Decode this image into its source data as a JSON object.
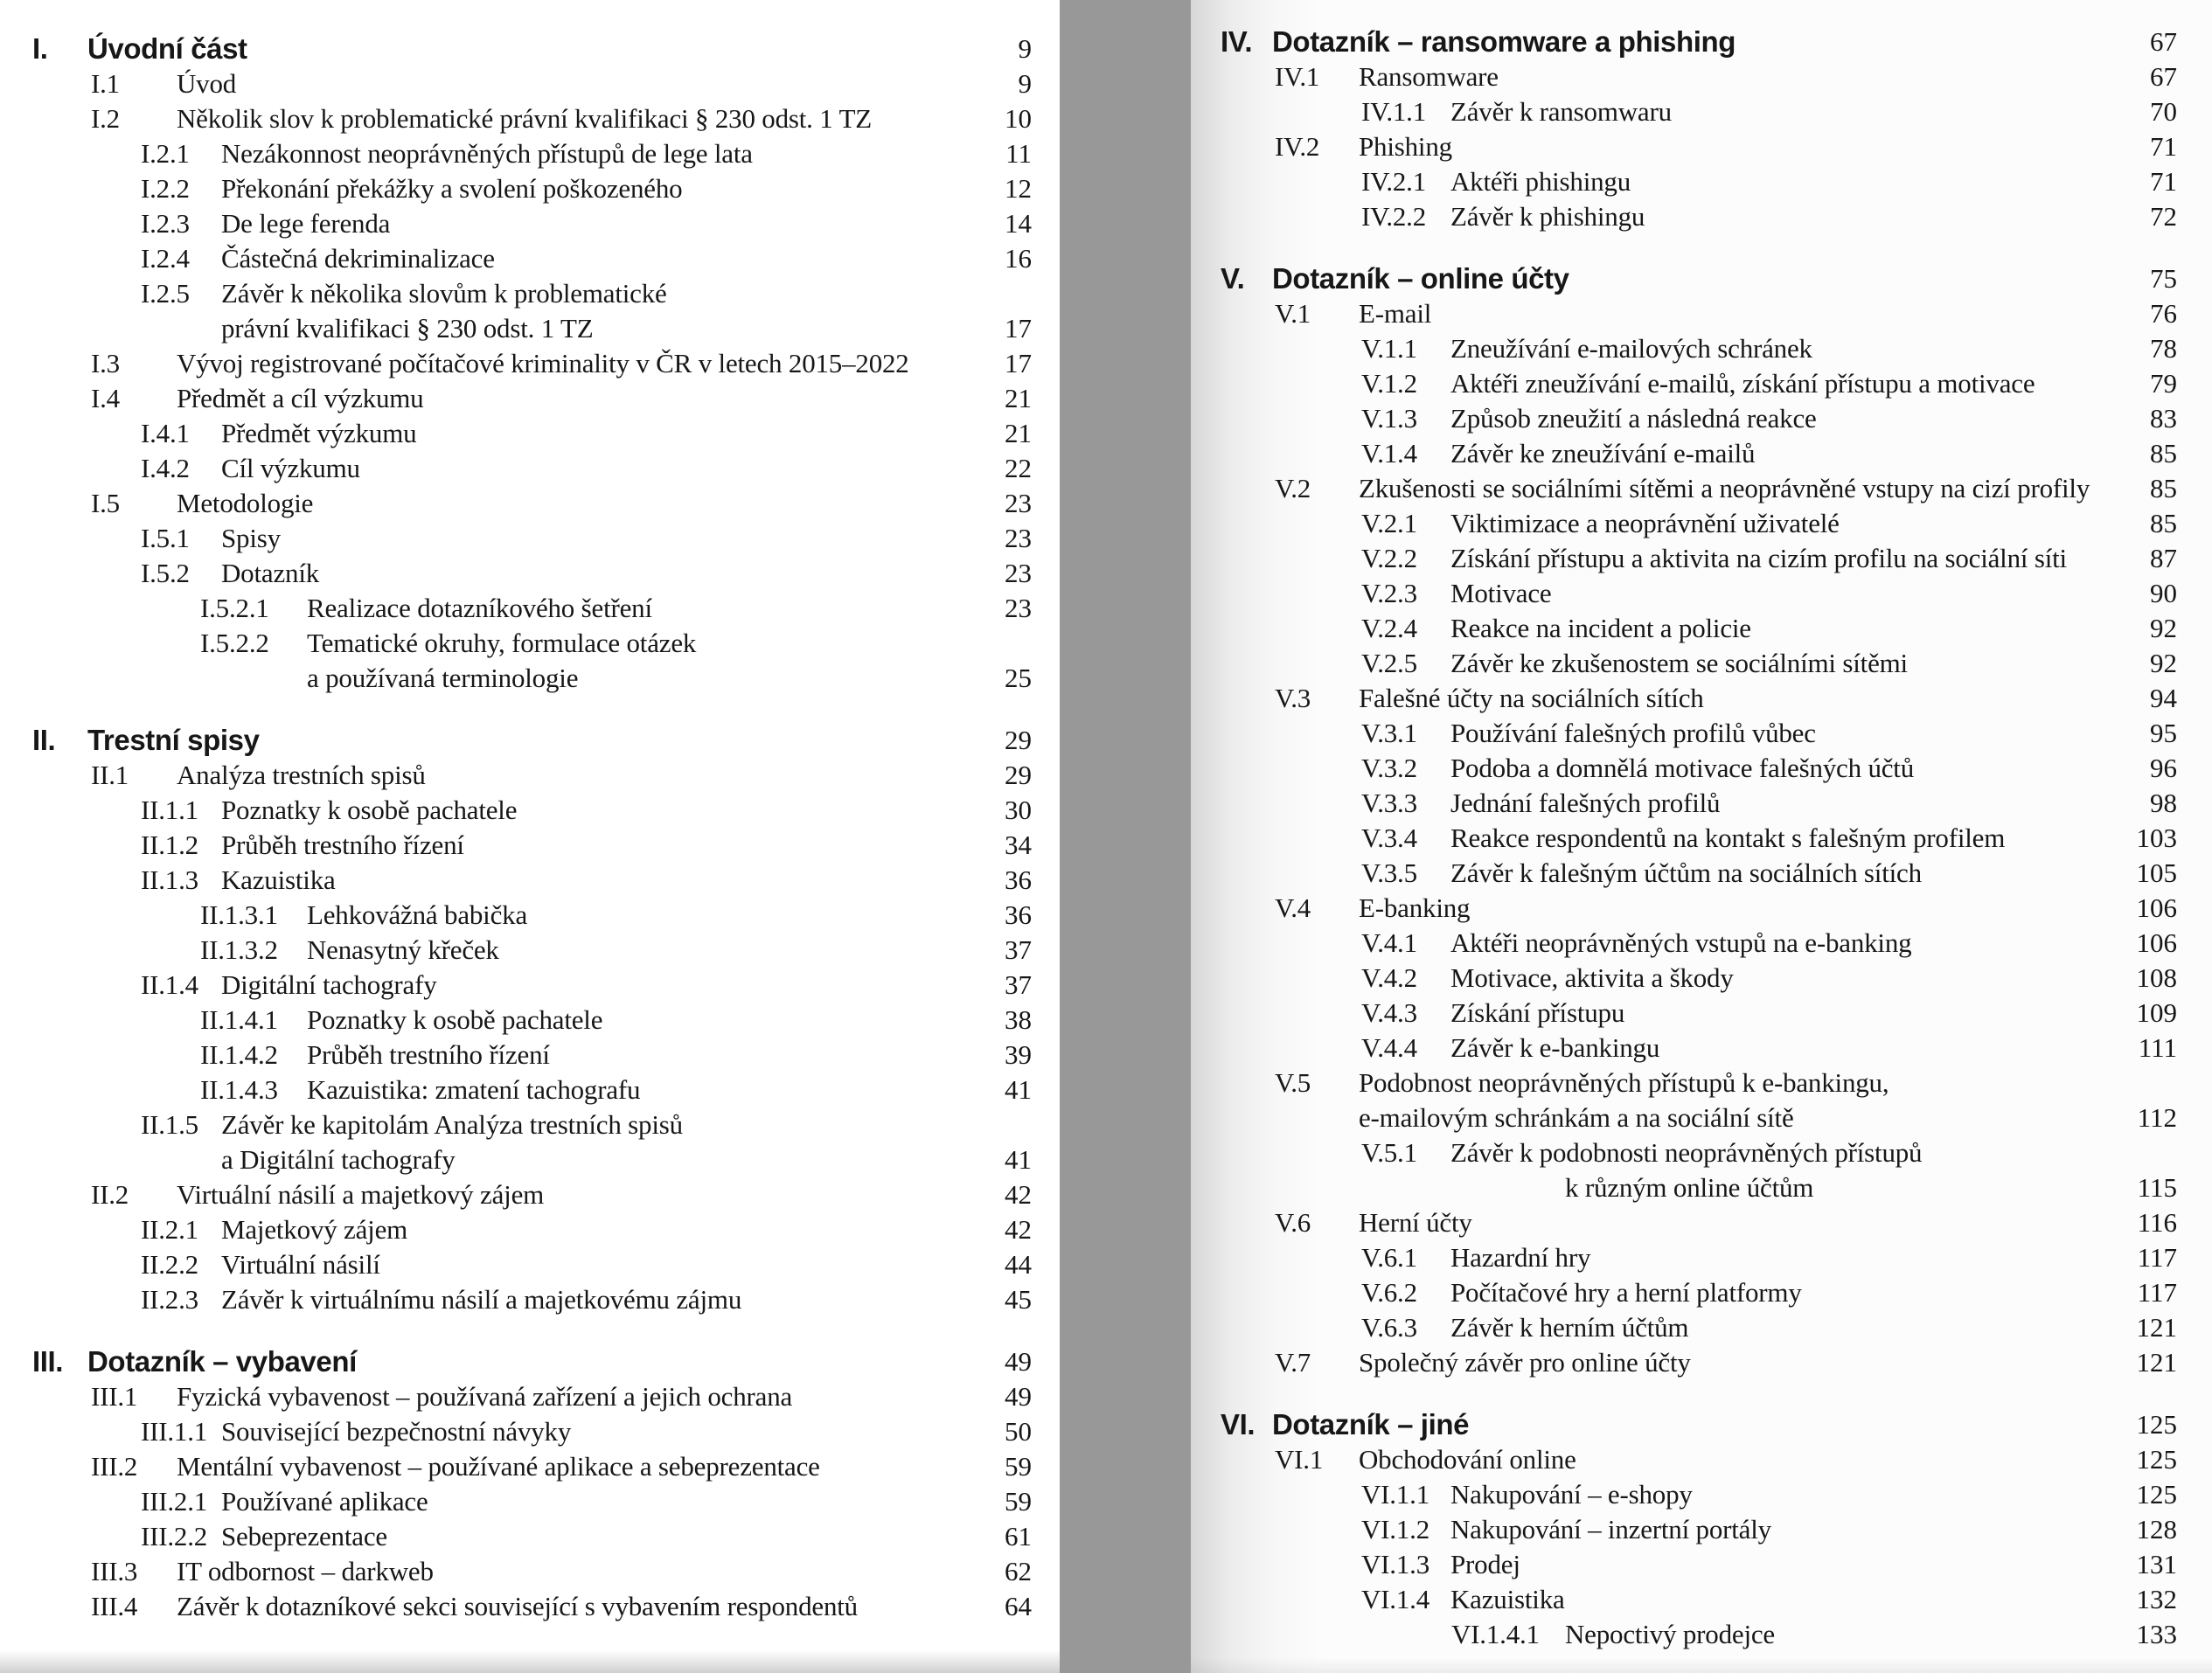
{
  "colors": {
    "page_background": "#ffffff",
    "right_page_background": "#fcfcfc",
    "gutter_gray": "#989898",
    "text": "#171717"
  },
  "left_page": {
    "sections": [
      {
        "num": "I.",
        "title": "Úvodní část",
        "page": "9",
        "entries": [
          {
            "num": "I.1",
            "text": "Úvod",
            "page": "9"
          },
          {
            "num": "I.2",
            "text": "Několik slov k problematické právní kvalifikaci § 230 odst. 1 TZ",
            "page": "10"
          },
          {
            "num": "I.2.1",
            "text": "Nezákonnost neoprávněných přístupů de lege lata",
            "page": "11"
          },
          {
            "num": "I.2.2",
            "text": "Překonání překážky a svolení poškozeného",
            "page": "12"
          },
          {
            "num": "I.2.3",
            "text": "De lege ferenda",
            "page": "14"
          },
          {
            "num": "I.2.4",
            "text": "Částečná dekriminalizace",
            "page": "16"
          },
          {
            "num": "I.2.5",
            "text": "Závěr k několika slovům k problematické",
            "text2": "právní kvalifikaci § 230 odst. 1 TZ",
            "page": "17"
          },
          {
            "num": "I.3",
            "text": "Vývoj registrované počítačové kriminality v ČR v letech 2015–2022",
            "page": "17"
          },
          {
            "num": "I.4",
            "text": "Předmět a cíl výzkumu",
            "page": "21"
          },
          {
            "num": "I.4.1",
            "text": "Předmět výzkumu",
            "page": "21"
          },
          {
            "num": "I.4.2",
            "text": "Cíl výzkumu",
            "page": "22"
          },
          {
            "num": "I.5",
            "text": "Metodologie",
            "page": "23"
          },
          {
            "num": "I.5.1",
            "text": "Spisy",
            "page": "23"
          },
          {
            "num": "I.5.2",
            "text": "Dotazník",
            "page": "23"
          },
          {
            "num": "I.5.2.1",
            "text": "Realizace dotazníkového šetření",
            "page": "23"
          },
          {
            "num": "I.5.2.2",
            "text": "Tematické okruhy, formulace otázek",
            "text2": "a používaná terminologie",
            "page": "25"
          }
        ]
      },
      {
        "num": "II.",
        "title": "Trestní spisy",
        "page": "29",
        "entries": [
          {
            "num": "II.1",
            "text": "Analýza trestních spisů",
            "page": "29"
          },
          {
            "num": "II.1.1",
            "text": "Poznatky k osobě pachatele",
            "page": "30"
          },
          {
            "num": "II.1.2",
            "text": "Průběh trestního řízení",
            "page": "34"
          },
          {
            "num": "II.1.3",
            "text": "Kazuistika",
            "page": "36"
          },
          {
            "num": "II.1.3.1",
            "text": "Lehkovážná babička",
            "page": "36"
          },
          {
            "num": "II.1.3.2",
            "text": "Nenasytný křeček",
            "page": "37"
          },
          {
            "num": "II.1.4",
            "text": "Digitální tachografy",
            "page": "37"
          },
          {
            "num": "II.1.4.1",
            "text": "Poznatky k osobě pachatele",
            "page": "38"
          },
          {
            "num": "II.1.4.2",
            "text": "Průběh trestního řízení",
            "page": "39"
          },
          {
            "num": "II.1.4.3",
            "text": "Kazuistika: zmatení tachografu",
            "page": "41"
          },
          {
            "num": "II.1.5",
            "text": "Závěr ke kapitolám Analýza trestních spisů",
            "text2": "a Digitální tachografy",
            "page": "41"
          },
          {
            "num": "II.2",
            "text": "Virtuální násilí a majetkový zájem",
            "page": "42"
          },
          {
            "num": "II.2.1",
            "text": "Majetkový zájem",
            "page": "42"
          },
          {
            "num": "II.2.2",
            "text": "Virtuální násilí",
            "page": "44"
          },
          {
            "num": "II.2.3",
            "text": "Závěr k virtuálnímu násilí a majetkovému zájmu",
            "page": "45"
          }
        ]
      },
      {
        "num": "III.",
        "title": "Dotazník – vybavení",
        "page": "49",
        "entries": [
          {
            "num": "III.1",
            "text": "Fyzická vybavenost – používaná zařízení a jejich ochrana",
            "page": "49"
          },
          {
            "num": "III.1.1",
            "text": "Související bezpečnostní návyky",
            "page": "50"
          },
          {
            "num": "III.2",
            "text": "Mentální vybavenost – používané aplikace a sebeprezentace",
            "page": "59"
          },
          {
            "num": "III.2.1",
            "text": "Používané aplikace",
            "page": "59"
          },
          {
            "num": "III.2.2",
            "text": "Sebeprezentace",
            "page": "61"
          },
          {
            "num": "III.3",
            "text": "IT odbornost – darkweb",
            "page": "62"
          },
          {
            "num": "III.4",
            "text": "Závěr k dotazníkové sekci související s vybavením respondentů",
            "page": "64"
          }
        ]
      }
    ]
  },
  "right_page": {
    "sections": [
      {
        "num": "IV.",
        "title": "Dotazník – ransomware a phishing",
        "page": "67",
        "entries": [
          {
            "num": "IV.1",
            "text": "Ransomware",
            "page": "67"
          },
          {
            "num": "IV.1.1",
            "text": "Závěr k ransomwaru",
            "page": "70"
          },
          {
            "num": "IV.2",
            "text": "Phishing",
            "page": "71"
          },
          {
            "num": "IV.2.1",
            "text": "Aktéři phishingu",
            "page": "71"
          },
          {
            "num": "IV.2.2",
            "text": "Závěr k phishingu",
            "page": "72"
          }
        ]
      },
      {
        "num": "V.",
        "title": "Dotazník – online účty",
        "page": "75",
        "entries": [
          {
            "num": "V.1",
            "text": "E-mail",
            "page": "76"
          },
          {
            "num": "V.1.1",
            "text": "Zneužívání e-mailových schránek",
            "page": "78"
          },
          {
            "num": "V.1.2",
            "text": "Aktéři zneužívání e-mailů, získání přístupu a motivace",
            "page": "79"
          },
          {
            "num": "V.1.3",
            "text": "Způsob zneužití a následná reakce",
            "page": "83"
          },
          {
            "num": "V.1.4",
            "text": "Závěr ke zneužívání e-mailů",
            "page": "85"
          },
          {
            "num": "V.2",
            "text": "Zkušenosti se sociálními sítěmi a neoprávněné vstupy na cizí profily",
            "page": "85"
          },
          {
            "num": "V.2.1",
            "text": "Viktimizace a neoprávnění uživatelé",
            "page": "85"
          },
          {
            "num": "V.2.2",
            "text": "Získání přístupu a aktivita na cizím profilu na sociální síti",
            "page": "87"
          },
          {
            "num": "V.2.3",
            "text": "Motivace",
            "page": "90"
          },
          {
            "num": "V.2.4",
            "text": "Reakce na incident a policie",
            "page": "92"
          },
          {
            "num": "V.2.5",
            "text": "Závěr ke zkušenostem se sociálními sítěmi",
            "page": "92"
          },
          {
            "num": "V.3",
            "text": "Falešné účty na sociálních sítích",
            "page": "94"
          },
          {
            "num": "V.3.1",
            "text": "Používání falešných profilů vůbec",
            "page": "95"
          },
          {
            "num": "V.3.2",
            "text": "Podoba a domnělá motivace falešných účtů",
            "page": "96"
          },
          {
            "num": "V.3.3",
            "text": "Jednání falešných profilů",
            "page": "98"
          },
          {
            "num": "V.3.4",
            "text": "Reakce respondentů na kontakt s falešným profilem",
            "page": "103"
          },
          {
            "num": "V.3.5",
            "text": "Závěr k falešným účtům na sociálních sítích",
            "page": "105"
          },
          {
            "num": "V.4",
            "text": "E-banking",
            "page": "106"
          },
          {
            "num": "V.4.1",
            "text": "Aktéři neoprávněných vstupů na e-banking",
            "page": "106"
          },
          {
            "num": "V.4.2",
            "text": "Motivace, aktivita a škody",
            "page": "108"
          },
          {
            "num": "V.4.3",
            "text": "Získání přístupu",
            "page": "109"
          },
          {
            "num": "V.4.4",
            "text": "Závěr k e-bankingu",
            "page": "111"
          },
          {
            "num": "V.5",
            "text": "Podobnost neoprávněných přístupů k e-bankingu,",
            "text2": "e-mailovým schránkám a na sociální sítě",
            "page": "112"
          },
          {
            "num": "V.5.1",
            "text": "Závěr k podobnosti neoprávněných přístupů",
            "text2": "k různým online účtům",
            "page": "115",
            "wrap_deeper": true
          },
          {
            "num": "V.6",
            "text": "Herní účty",
            "page": "116"
          },
          {
            "num": "V.6.1",
            "text": "Hazardní hry",
            "page": "117"
          },
          {
            "num": "V.6.2",
            "text": "Počítačové hry a herní platformy",
            "page": "117"
          },
          {
            "num": "V.6.3",
            "text": "Závěr k herním účtům",
            "page": "121"
          },
          {
            "num": "V.7",
            "text": "Společný závěr pro online účty",
            "page": "121"
          }
        ]
      },
      {
        "num": "VI.",
        "title": "Dotazník – jiné",
        "page": "125",
        "entries": [
          {
            "num": "VI.1",
            "text": "Obchodování online",
            "page": "125"
          },
          {
            "num": "VI.1.1",
            "text": "Nakupování – e-shopy",
            "page": "125"
          },
          {
            "num": "VI.1.2",
            "text": "Nakupování – inzertní portály",
            "page": "128"
          },
          {
            "num": "VI.1.3",
            "text": "Prodej",
            "page": "131"
          },
          {
            "num": "VI.1.4",
            "text": "Kazuistika",
            "page": "132"
          },
          {
            "num": "VI.1.4.1",
            "text": "Nepoctivý prodejce",
            "page": "133"
          }
        ]
      }
    ]
  }
}
